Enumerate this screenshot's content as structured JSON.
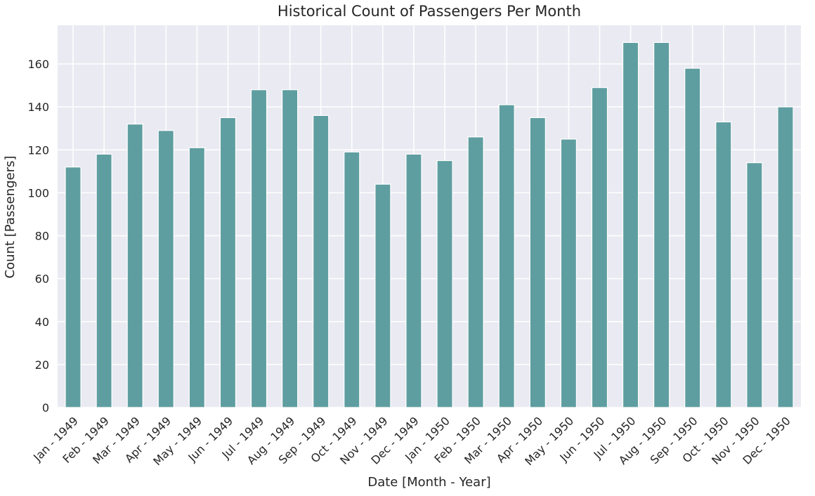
{
  "chart_data": {
    "type": "bar",
    "title": "Historical Count of Passengers Per Month",
    "xlabel": "Date [Month - Year]",
    "ylabel": "Count [Passengers]",
    "categories": [
      "Jan - 1949",
      "Feb - 1949",
      "Mar - 1949",
      "Apr - 1949",
      "May - 1949",
      "Jun - 1949",
      "Jul - 1949",
      "Aug - 1949",
      "Sep - 1949",
      "Oct - 1949",
      "Nov - 1949",
      "Dec - 1949",
      "Jan - 1950",
      "Feb - 1950",
      "Mar - 1950",
      "Apr - 1950",
      "May - 1950",
      "Jun - 1950",
      "Jul - 1950",
      "Aug - 1950",
      "Sep - 1950",
      "Oct - 1950",
      "Nov - 1950",
      "Dec - 1950"
    ],
    "values": [
      112,
      118,
      132,
      129,
      121,
      135,
      148,
      148,
      136,
      119,
      104,
      118,
      115,
      126,
      141,
      135,
      125,
      149,
      170,
      170,
      158,
      133,
      114,
      140
    ],
    "ylim": [
      0,
      178
    ],
    "yticks": [
      0,
      20,
      40,
      60,
      80,
      100,
      120,
      140,
      160
    ],
    "grid": true,
    "colors": {
      "bar": "#5f9ea0",
      "background": "#eaeaf2",
      "grid": "#ffffff"
    }
  }
}
